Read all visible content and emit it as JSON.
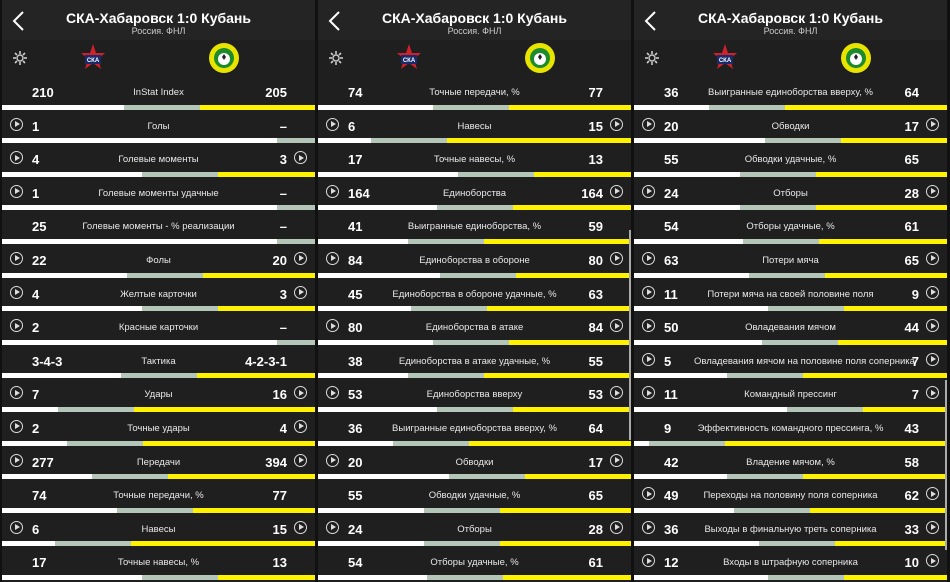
{
  "header": {
    "title": "СКА-Хабаровск 1:0 Кубань",
    "subtitle": "Россия. ФНЛ"
  },
  "icons": {
    "back": "back-arrow-icon",
    "settings": "gear-icon",
    "home_logo": "ska-khabarovsk-logo",
    "away_logo": "kuban-logo"
  },
  "colors": {
    "home_bar": "#ffffff",
    "away_bar": "#fff200",
    "neutral_bar": "#b4c6b8",
    "background": "#1f1f1f"
  },
  "panels": [
    {
      "rows": [
        {
          "name": "InStat Index",
          "home": "210",
          "away": "205",
          "play_left": false,
          "play_right": false,
          "h": 0.51
        },
        {
          "name": "Голы",
          "home": "1",
          "away": "–",
          "play_left": true,
          "play_right": false,
          "h": 1.0
        },
        {
          "name": "Голевые моменты",
          "home": "4",
          "away": "3",
          "play_left": true,
          "play_right": true,
          "h": 0.57
        },
        {
          "name": "Голевые моменты удачные",
          "home": "1",
          "away": "–",
          "play_left": true,
          "play_right": false,
          "h": 1.0
        },
        {
          "name": "Голевые моменты - % реализации",
          "home": "25",
          "away": "–",
          "play_left": false,
          "play_right": false,
          "h": 1.0
        },
        {
          "name": "Фолы",
          "home": "22",
          "away": "20",
          "play_left": true,
          "play_right": true,
          "h": 0.52
        },
        {
          "name": "Желтые карточки",
          "home": "4",
          "away": "3",
          "play_left": true,
          "play_right": true,
          "h": 0.57
        },
        {
          "name": "Красные карточки",
          "home": "2",
          "away": "–",
          "play_left": true,
          "play_right": false,
          "h": 1.0
        },
        {
          "name": "Тактика",
          "home": "3-4-3",
          "away": "4-2-3-1",
          "play_left": false,
          "play_right": false,
          "h": 0.5
        },
        {
          "name": "Удары",
          "home": "7",
          "away": "16",
          "play_left": true,
          "play_right": true,
          "h": 0.3
        },
        {
          "name": "Точные удары",
          "home": "2",
          "away": "4",
          "play_left": true,
          "play_right": true,
          "h": 0.33
        },
        {
          "name": "Передачи",
          "home": "277",
          "away": "394",
          "play_left": true,
          "play_right": true,
          "h": 0.41
        },
        {
          "name": "Точные передачи, %",
          "home": "74",
          "away": "77",
          "play_left": false,
          "play_right": false,
          "h": 0.49
        },
        {
          "name": "Навесы",
          "home": "6",
          "away": "15",
          "play_left": true,
          "play_right": true,
          "h": 0.29
        },
        {
          "name": "Точные навесы, %",
          "home": "17",
          "away": "13",
          "play_left": false,
          "play_right": false,
          "h": 0.57
        }
      ]
    },
    {
      "rows": [
        {
          "name": "Точные передачи, %",
          "home": "74",
          "away": "77",
          "play_left": false,
          "play_right": false,
          "h": 0.49
        },
        {
          "name": "Навесы",
          "home": "6",
          "away": "15",
          "play_left": true,
          "play_right": true,
          "h": 0.29
        },
        {
          "name": "Точные навесы, %",
          "home": "17",
          "away": "13",
          "play_left": false,
          "play_right": false,
          "h": 0.57
        },
        {
          "name": "Единоборства",
          "home": "164",
          "away": "164",
          "play_left": true,
          "play_right": true,
          "h": 0.5
        },
        {
          "name": "Выигранные единоборства, %",
          "home": "41",
          "away": "59",
          "play_left": false,
          "play_right": false,
          "h": 0.41
        },
        {
          "name": "Единоборства в обороне",
          "home": "84",
          "away": "80",
          "play_left": true,
          "play_right": true,
          "h": 0.51
        },
        {
          "name": "Единоборства в обороне удачные, %",
          "home": "45",
          "away": "63",
          "play_left": false,
          "play_right": false,
          "h": 0.42
        },
        {
          "name": "Единоборства в атаке",
          "home": "80",
          "away": "84",
          "play_left": true,
          "play_right": true,
          "h": 0.49
        },
        {
          "name": "Единоборства в атаке удачные, %",
          "home": "38",
          "away": "55",
          "play_left": false,
          "play_right": false,
          "h": 0.41
        },
        {
          "name": "Единоборства вверху",
          "home": "53",
          "away": "53",
          "play_left": true,
          "play_right": true,
          "h": 0.5
        },
        {
          "name": "Выигранные единоборства вверху, %",
          "home": "36",
          "away": "64",
          "play_left": false,
          "play_right": false,
          "h": 0.36
        },
        {
          "name": "Обводки",
          "home": "20",
          "away": "17",
          "play_left": true,
          "play_right": true,
          "h": 0.54
        },
        {
          "name": "Обводки удачные, %",
          "home": "55",
          "away": "65",
          "play_left": false,
          "play_right": false,
          "h": 0.46
        },
        {
          "name": "Отборы",
          "home": "24",
          "away": "28",
          "play_left": true,
          "play_right": true,
          "h": 0.46
        },
        {
          "name": "Отборы удачные, %",
          "home": "54",
          "away": "61",
          "play_left": false,
          "play_right": false,
          "h": 0.47
        }
      ]
    },
    {
      "rows": [
        {
          "name": "Выигранные единоборства вверху, %",
          "home": "36",
          "away": "64",
          "play_left": false,
          "play_right": false,
          "h": 0.36
        },
        {
          "name": "Обводки",
          "home": "20",
          "away": "17",
          "play_left": true,
          "play_right": true,
          "h": 0.54
        },
        {
          "name": "Обводки удачные, %",
          "home": "55",
          "away": "65",
          "play_left": false,
          "play_right": false,
          "h": 0.46
        },
        {
          "name": "Отборы",
          "home": "24",
          "away": "28",
          "play_left": true,
          "play_right": true,
          "h": 0.46
        },
        {
          "name": "Отборы удачные, %",
          "home": "54",
          "away": "61",
          "play_left": false,
          "play_right": false,
          "h": 0.47
        },
        {
          "name": "Потери мяча",
          "home": "63",
          "away": "65",
          "play_left": true,
          "play_right": true,
          "h": 0.49
        },
        {
          "name": "Потери мяча на своей половине поля",
          "home": "11",
          "away": "9",
          "play_left": true,
          "play_right": true,
          "h": 0.55
        },
        {
          "name": "Овладевания мячом",
          "home": "50",
          "away": "44",
          "play_left": true,
          "play_right": true,
          "h": 0.53
        },
        {
          "name": "Овладевания мячом на половине поля соперника",
          "home": "5",
          "away": "7",
          "play_left": true,
          "play_right": true,
          "h": 0.42
        },
        {
          "name": "Командный прессинг",
          "home": "11",
          "away": "7",
          "play_left": true,
          "play_right": true,
          "h": 0.61
        },
        {
          "name": "Эффективность командного прессинга, %",
          "home": "9",
          "away": "43",
          "play_left": false,
          "play_right": false,
          "h": 0.17
        },
        {
          "name": "Владение мячом, %",
          "home": "42",
          "away": "58",
          "play_left": false,
          "play_right": false,
          "h": 0.42
        },
        {
          "name": "Переходы на половину поля соперника",
          "home": "49",
          "away": "62",
          "play_left": true,
          "play_right": true,
          "h": 0.44
        },
        {
          "name": "Выходы в финальную треть соперника",
          "home": "36",
          "away": "33",
          "play_left": true,
          "play_right": true,
          "h": 0.52
        },
        {
          "name": "Входы в штрафную соперника",
          "home": "12",
          "away": "10",
          "play_left": true,
          "play_right": true,
          "h": 0.55
        }
      ]
    }
  ]
}
